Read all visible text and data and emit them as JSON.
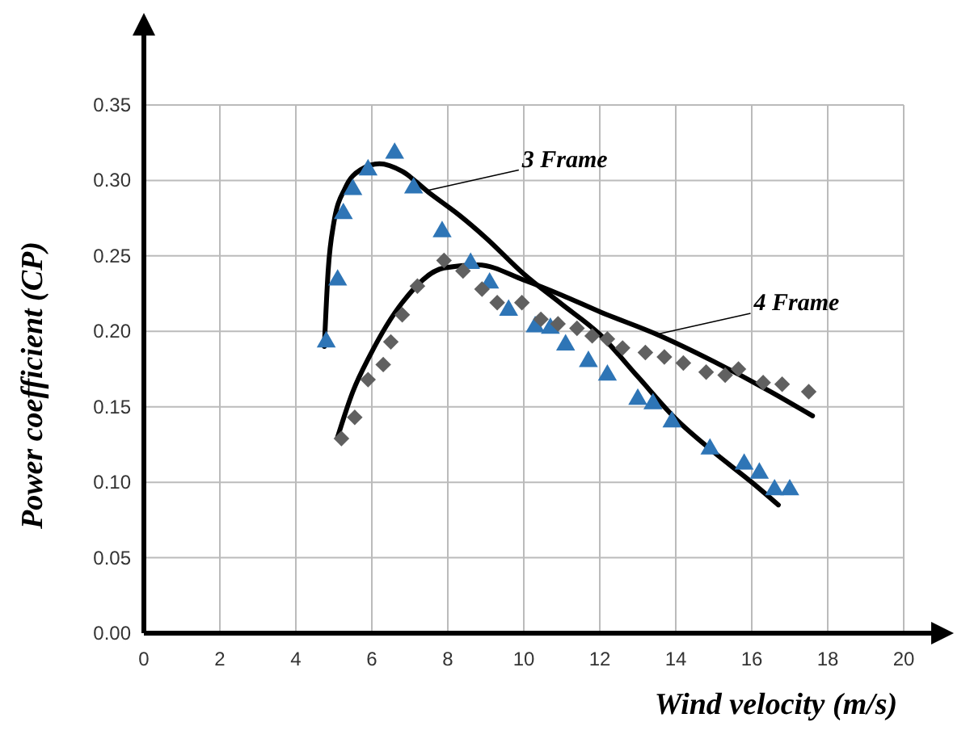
{
  "chart_data": {
    "type": "scatter",
    "xlabel": "Wind velocity (m/s)",
    "ylabel": "Power coefficient (CP)",
    "xlim": [
      0,
      20
    ],
    "xticks": [
      0,
      2,
      4,
      6,
      8,
      10,
      12,
      14,
      16,
      18,
      20
    ],
    "ylim": [
      0,
      0.35
    ],
    "yticks": [
      {
        "value": 0,
        "label": "0.00"
      },
      {
        "value": 0.05,
        "label": "0.05"
      },
      {
        "value": 0.1,
        "label": "0.10"
      },
      {
        "value": 0.15,
        "label": "0.15"
      },
      {
        "value": 0.2,
        "label": "0.20"
      },
      {
        "value": 0.25,
        "label": "0.25"
      },
      {
        "value": 0.3,
        "label": "0.30"
      },
      {
        "value": 0.35,
        "label": "0.35"
      }
    ],
    "grid": true,
    "series": [
      {
        "marker": "triangle",
        "color": "#2e75b6",
        "x": [
          4.8,
          5.1,
          5.25,
          5.5,
          5.9,
          6.6,
          7.1,
          7.85,
          8.6,
          9.1,
          9.6,
          10.3,
          10.7,
          11.1,
          11.7,
          12.2,
          13.0,
          13.4,
          13.9,
          14.9,
          15.8,
          16.2,
          16.6,
          17.0
        ],
        "values": [
          0.193,
          0.234,
          0.278,
          0.294,
          0.307,
          0.318,
          0.295,
          0.266,
          0.245,
          0.232,
          0.214,
          0.203,
          0.202,
          0.191,
          0.18,
          0.171,
          0.155,
          0.152,
          0.14,
          0.122,
          0.112,
          0.106,
          0.095,
          0.095
        ]
      },
      {
        "marker": "diamond",
        "color": "#606060",
        "x": [
          5.2,
          5.55,
          5.9,
          6.3,
          6.5,
          6.8,
          7.2,
          7.9,
          8.4,
          8.9,
          9.3,
          9.95,
          10.45,
          10.9,
          11.4,
          11.8,
          12.2,
          12.6,
          13.2,
          13.7,
          14.2,
          14.8,
          15.3,
          15.65,
          16.3,
          16.8,
          17.5
        ],
        "values": [
          0.129,
          0.143,
          0.168,
          0.178,
          0.193,
          0.211,
          0.23,
          0.247,
          0.24,
          0.228,
          0.219,
          0.219,
          0.208,
          0.205,
          0.202,
          0.197,
          0.195,
          0.189,
          0.186,
          0.183,
          0.179,
          0.173,
          0.171,
          0.175,
          0.166,
          0.165,
          0.16
        ]
      },
      {
        "type": "line",
        "marker": "none",
        "color": "#000000",
        "x": [
          4.75,
          4.85,
          5.0,
          5.3,
          5.7,
          6.2,
          6.8,
          7.5,
          8.3,
          9.0,
          10.0,
          11.0,
          12.0,
          13.0,
          14.0,
          15.0,
          16.0,
          16.7
        ],
        "values": [
          0.19,
          0.24,
          0.272,
          0.295,
          0.307,
          0.311,
          0.306,
          0.292,
          0.277,
          0.262,
          0.238,
          0.218,
          0.198,
          0.17,
          0.142,
          0.12,
          0.1,
          0.085
        ]
      },
      {
        "type": "line",
        "marker": "none",
        "color": "#000000",
        "x": [
          5.1,
          5.5,
          5.95,
          6.8,
          7.9,
          8.8,
          10.0,
          11.0,
          12.0,
          13.5,
          15.0,
          16.5,
          17.6
        ],
        "values": [
          0.13,
          0.16,
          0.184,
          0.219,
          0.242,
          0.244,
          0.234,
          0.224,
          0.213,
          0.198,
          0.18,
          0.16,
          0.144
        ]
      }
    ],
    "annotations": [
      {
        "text": "3 Frame",
        "x": 7.4,
        "y": 0.293
      },
      {
        "text": "4 Frame",
        "x": 13.5,
        "y": 0.198
      }
    ]
  }
}
